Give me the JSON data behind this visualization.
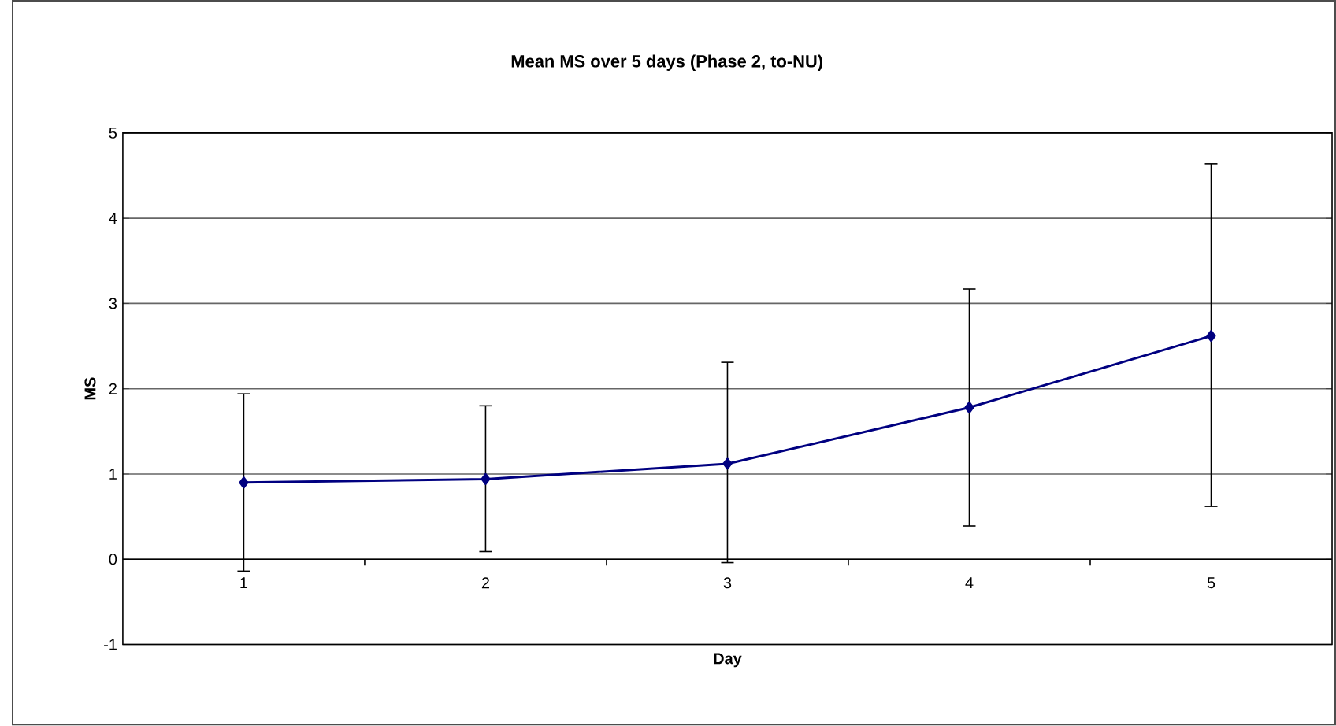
{
  "chart_data": {
    "type": "line",
    "title": "Mean MS over 5 days (Phase 2, to-NU)",
    "xlabel": "Day",
    "ylabel": "MS",
    "categories": [
      "1",
      "2",
      "3",
      "4",
      "5"
    ],
    "series": [
      {
        "color": "#000080",
        "values": [
          0.9,
          0.94,
          1.12,
          1.78,
          2.62
        ],
        "errors": [
          [
            -0.14,
            1.94
          ],
          [
            0.09,
            1.8
          ],
          [
            -0.04,
            2.31
          ],
          [
            0.39,
            3.17
          ],
          [
            0.62,
            4.64
          ]
        ]
      }
    ],
    "ylim": [
      -1,
      5
    ],
    "yticks": [
      -1,
      0,
      1,
      2,
      3,
      4,
      5
    ],
    "grid": "y",
    "marker": "diamond",
    "line_style": "solid"
  }
}
